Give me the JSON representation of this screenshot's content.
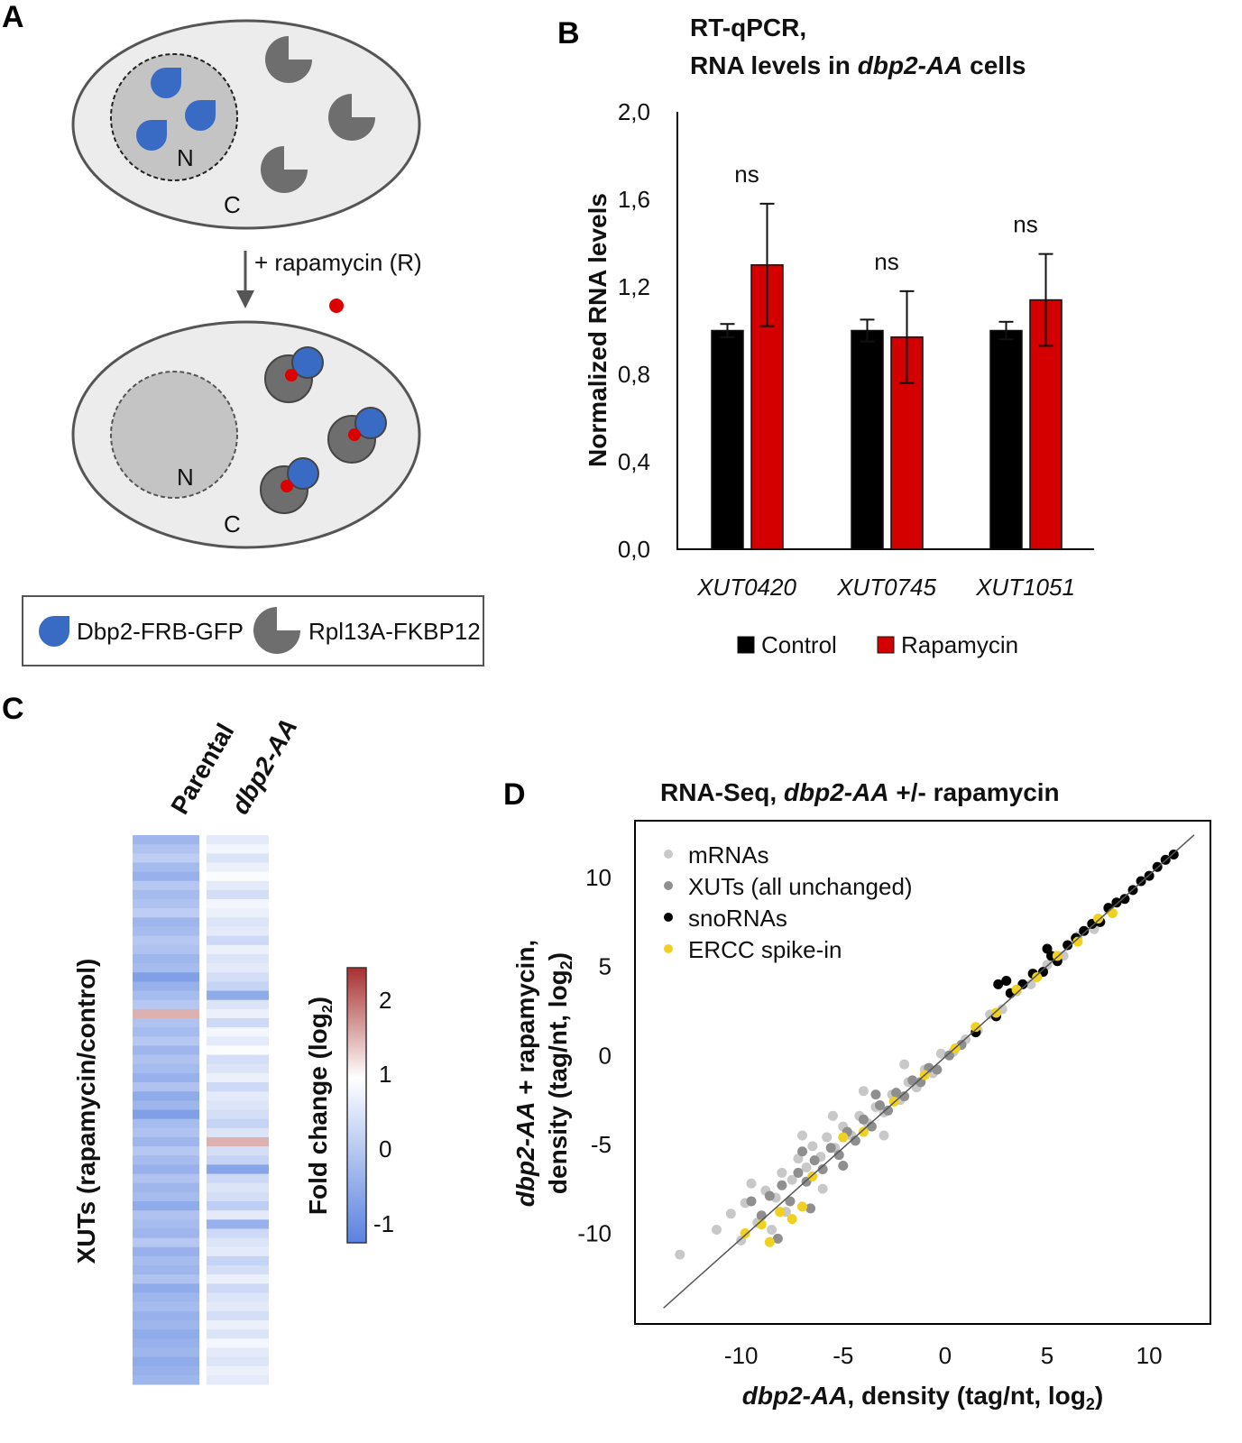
{
  "panels": {
    "a": "A",
    "b": "B",
    "c": "C",
    "d": "D"
  },
  "panel_a": {
    "nucleus_label": "N",
    "cytoplasm_label": "C",
    "treatment_label": "+ rapamycin (R)",
    "legend": {
      "item1": "Dbp2-FRB-GFP",
      "item2": "Rpl13A-FKBP12"
    },
    "colors": {
      "dbp2": "#3a6bc4",
      "rpl13a": "#6e6e6e",
      "rapamycin": "#dd0000",
      "cell": "#ececec",
      "nucleus_after": "#c4c4c4"
    }
  },
  "chart_data": [
    {
      "type": "bar",
      "title_line1": "RT-qPCR,",
      "title_line2_pre": "RNA levels in ",
      "title_line2_it": "dbp2-AA",
      "title_line2_post": " cells",
      "ylabel": "Normalized RNA levels",
      "ylim": [
        0,
        2.0
      ],
      "yticks": [
        "0,0",
        "0,4",
        "0,8",
        "1,2",
        "1,6",
        "2,0"
      ],
      "categories": [
        "XUT0420",
        "XUT0745",
        "XUT1051"
      ],
      "series": [
        {
          "name": "Control",
          "color": "#000000",
          "values": [
            1.0,
            1.0,
            1.0
          ],
          "errors": [
            0.03,
            0.05,
            0.04
          ]
        },
        {
          "name": "Rapamycin",
          "color": "#d40000",
          "values": [
            1.3,
            0.97,
            1.14
          ],
          "errors": [
            0.28,
            0.21,
            0.21
          ]
        }
      ],
      "annotations": [
        "ns",
        "ns",
        "ns"
      ],
      "legend_position": "bottom"
    },
    {
      "type": "heatmap",
      "columns": [
        "Parental",
        "dbp2-AA"
      ],
      "ylabel": "XUTs (rapamycin/control)",
      "colorbar_label": "Fold change (log",
      "colorbar_sub": "2",
      "colorbar_close": ")",
      "colorbar_ticks": [
        "2",
        "1",
        "0",
        "-1"
      ],
      "colorbar_range": [
        -1.2,
        2.4
      ],
      "values": [
        [
          -0.3,
          -0.1,
          0.1,
          -0.2,
          -0.4,
          0.0,
          -0.2,
          -0.1,
          0.1,
          -0.3,
          -0.2,
          0.0,
          -0.1,
          -0.3,
          -0.2,
          -0.7,
          -0.4,
          -0.2,
          0.0,
          1.5,
          -0.1,
          -0.2,
          0.0,
          -0.3,
          -0.1,
          -0.2,
          -0.4,
          -0.1,
          -0.5,
          -0.3,
          -0.7,
          -0.2,
          -0.1,
          -0.3,
          0.0,
          -0.2,
          -0.4,
          -0.1,
          -0.3,
          -0.2,
          -0.5,
          -0.1,
          -0.2,
          -0.3,
          0.0,
          -0.4,
          -0.2,
          -0.3,
          -0.1,
          -0.5,
          -0.3,
          -0.2,
          -0.4,
          -0.3,
          -0.5,
          -0.4,
          -0.3,
          -0.5,
          -0.4,
          -0.3
        ],
        [
          0.6,
          0.8,
          0.5,
          0.7,
          0.9,
          0.6,
          0.4,
          0.8,
          0.7,
          0.5,
          0.6,
          0.3,
          0.7,
          0.5,
          0.6,
          0.4,
          0.2,
          -0.5,
          0.5,
          0.7,
          0.3,
          0.8,
          0.6,
          0.9,
          0.4,
          0.5,
          0.7,
          0.3,
          0.6,
          0.5,
          0.4,
          0.2,
          0.5,
          1.5,
          0.4,
          0.2,
          -0.6,
          0.3,
          0.5,
          0.4,
          0.1,
          0.6,
          -0.4,
          0.3,
          0.5,
          0.6,
          0.2,
          0.4,
          0.7,
          0.3,
          0.5,
          0.6,
          0.4,
          0.7,
          0.5,
          0.8,
          0.6,
          0.5,
          0.7,
          0.6
        ]
      ]
    },
    {
      "type": "scatter",
      "title_pre": "RNA-Seq, ",
      "title_it": "dbp2-AA",
      "title_post": " +/- rapamycin",
      "xlabel_it": "dbp2-AA",
      "xlabel_rest": ", density (tag/nt, log",
      "xlabel_sub": "2",
      "xlabel_close": ")",
      "ylabel1_it": "dbp2-AA",
      "ylabel1_rest": " + rapamycin,",
      "ylabel2": "density (tag/nt, log",
      "ylabel2_sub": "2",
      "ylabel2_close": ")",
      "xlim": [
        -15.2,
        13.0
      ],
      "ylim": [
        -15.1,
        13.2
      ],
      "xticks": [
        "-10",
        "-5",
        "0",
        "5",
        "10"
      ],
      "yticks": [
        "10",
        "5",
        "0",
        "-5",
        "-10"
      ],
      "diagonal": [
        [
          -13.8,
          -14.2
        ],
        [
          12.2,
          12.4
        ]
      ],
      "legend_position": "top-left",
      "series": [
        {
          "name": "mRNAs",
          "color": "#c8c8c8",
          "points": [
            [
              -13,
              -11.2
            ],
            [
              -11.2,
              -9.8
            ],
            [
              -10.5,
              -8.9
            ],
            [
              -9.8,
              -8.3
            ],
            [
              -9.2,
              -9.4
            ],
            [
              -8.8,
              -7.6
            ],
            [
              -8.3,
              -8.0
            ],
            [
              -8.0,
              -6.6
            ],
            [
              -7.5,
              -7.0
            ],
            [
              -7.2,
              -5.8
            ],
            [
              -6.8,
              -6.3
            ],
            [
              -6.5,
              -5.1
            ],
            [
              -6.1,
              -5.7
            ],
            [
              -5.8,
              -4.6
            ],
            [
              -5.4,
              -5.2
            ],
            [
              -5.0,
              -4.0
            ],
            [
              -4.6,
              -4.5
            ],
            [
              -4.2,
              -3.4
            ],
            [
              -3.8,
              -3.8
            ],
            [
              -3.4,
              -2.9
            ],
            [
              -3.0,
              -3.2
            ],
            [
              -2.6,
              -2.2
            ],
            [
              -2.2,
              -2.5
            ],
            [
              -1.8,
              -1.5
            ],
            [
              -1.4,
              -1.8
            ],
            [
              -1.0,
              -0.8
            ],
            [
              -0.6,
              -1.0
            ],
            [
              -0.2,
              0.1
            ],
            [
              0.4,
              0.2
            ],
            [
              1.0,
              0.9
            ],
            [
              1.6,
              1.4
            ],
            [
              2.2,
              2.3
            ],
            [
              2.8,
              2.6
            ],
            [
              3.5,
              3.6
            ],
            [
              4.2,
              4.0
            ],
            [
              5.0,
              5.1
            ],
            [
              5.8,
              5.6
            ],
            [
              6.5,
              6.7
            ],
            [
              7.3,
              7.1
            ],
            [
              8.0,
              8.2
            ],
            [
              -7.0,
              -4.5
            ],
            [
              -5.5,
              -3.4
            ],
            [
              -4.0,
              -2.0
            ],
            [
              -6.0,
              -7.5
            ],
            [
              -8.5,
              -9.8
            ],
            [
              -9.5,
              -7.2
            ],
            [
              -3.0,
              -4.5
            ],
            [
              -2.0,
              -0.5
            ],
            [
              -10.0,
              -10.4
            ],
            [
              -7.8,
              -8.8
            ]
          ]
        },
        {
          "name": "XUTs (all unchanged)",
          "color": "#8f8f8f",
          "points": [
            [
              -9.5,
              -8.2
            ],
            [
              -9.0,
              -9.0
            ],
            [
              -8.6,
              -7.9
            ],
            [
              -8.0,
              -7.3
            ],
            [
              -7.6,
              -8.2
            ],
            [
              -7.2,
              -6.6
            ],
            [
              -6.8,
              -7.1
            ],
            [
              -6.4,
              -5.9
            ],
            [
              -6.0,
              -6.4
            ],
            [
              -5.6,
              -5.2
            ],
            [
              -5.2,
              -5.6
            ],
            [
              -4.8,
              -4.3
            ],
            [
              -4.4,
              -4.8
            ],
            [
              -4.0,
              -3.6
            ],
            [
              -3.6,
              -4.0
            ],
            [
              -3.2,
              -2.8
            ],
            [
              -2.8,
              -3.1
            ],
            [
              -2.4,
              -2.1
            ],
            [
              -2.0,
              -2.3
            ],
            [
              -1.6,
              -1.4
            ],
            [
              -1.2,
              -1.5
            ],
            [
              -0.8,
              -0.7
            ],
            [
              -0.4,
              -0.8
            ],
            [
              0.2,
              0.0
            ],
            [
              0.8,
              0.6
            ],
            [
              -7.0,
              -5.4
            ],
            [
              -5.0,
              -6.2
            ],
            [
              -8.2,
              -10.3
            ],
            [
              -6.6,
              -8.6
            ],
            [
              -3.4,
              -2.2
            ]
          ]
        },
        {
          "name": "snoRNAs",
          "color": "#000000",
          "points": [
            [
              1.5,
              1.3
            ],
            [
              2.5,
              2.2
            ],
            [
              3.2,
              3.5
            ],
            [
              3.8,
              4.0
            ],
            [
              4.3,
              4.6
            ],
            [
              4.8,
              4.7
            ],
            [
              5.2,
              5.6
            ],
            [
              5.5,
              5.3
            ],
            [
              6.0,
              6.2
            ],
            [
              6.4,
              6.6
            ],
            [
              6.8,
              7.0
            ],
            [
              7.2,
              7.4
            ],
            [
              7.6,
              7.5
            ],
            [
              8.0,
              8.3
            ],
            [
              8.4,
              8.6
            ],
            [
              8.8,
              8.8
            ],
            [
              9.2,
              9.3
            ],
            [
              9.6,
              9.8
            ],
            [
              10.0,
              10.1
            ],
            [
              10.4,
              10.6
            ],
            [
              10.8,
              11.0
            ],
            [
              11.2,
              11.3
            ],
            [
              3.0,
              4.2
            ],
            [
              2.6,
              4.0
            ],
            [
              5.0,
              6.0
            ]
          ]
        },
        {
          "name": "ERCC spike-in",
          "color": "#f0d020",
          "points": [
            [
              -9.8,
              -10.0
            ],
            [
              -9.0,
              -9.5
            ],
            [
              -8.6,
              -10.5
            ],
            [
              -8.1,
              -8.8
            ],
            [
              -7.5,
              -9.2
            ],
            [
              -7.0,
              -8.5
            ],
            [
              -6.5,
              -6.8
            ],
            [
              -5.0,
              -4.6
            ],
            [
              -4.0,
              -4.3
            ],
            [
              -2.5,
              -2.6
            ],
            [
              -1.0,
              -1.1
            ],
            [
              0.5,
              0.4
            ],
            [
              1.5,
              1.6
            ],
            [
              2.5,
              2.4
            ],
            [
              3.5,
              3.7
            ],
            [
              4.5,
              4.4
            ],
            [
              5.5,
              5.6
            ],
            [
              6.5,
              6.4
            ],
            [
              7.5,
              7.7
            ],
            [
              8.2,
              8.0
            ]
          ]
        }
      ]
    }
  ]
}
